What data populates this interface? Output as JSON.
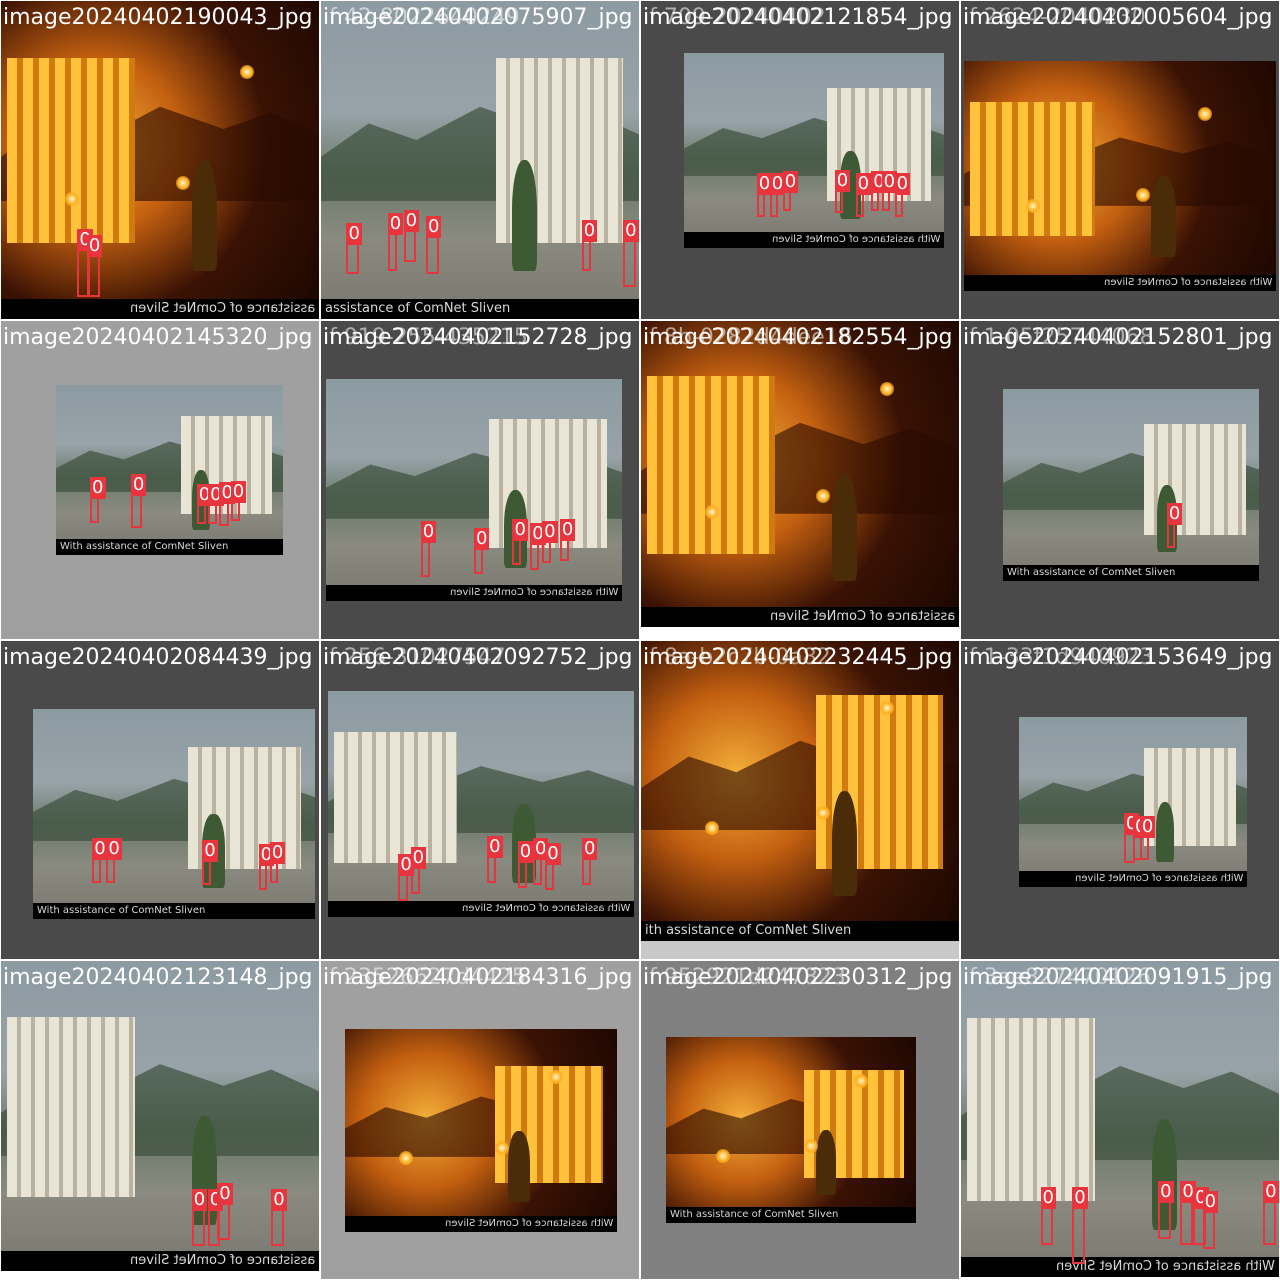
{
  "tiles": [
    {
      "title": "image20240402190043_jpg",
      "ghost": "",
      "caption": "assistance of ComNet Sliven",
      "caption_mirrored": true,
      "night": true,
      "labels": [
        "0",
        "0"
      ]
    },
    {
      "title": "image20240402075907_jpg",
      "ghost": "if 42-8022640249",
      "caption": "assistance of ComNet Sliven",
      "caption_mirrored": false,
      "night": false,
      "labels": [
        "0",
        "0",
        "0",
        "0",
        "0",
        "0"
      ]
    },
    {
      "title": "image20240402121854_jpg",
      "ghost": "if 709-20240402",
      "caption": "With assistance of ComNet Sliven",
      "caption_mirrored": true,
      "night": false,
      "labels": [
        "0",
        "0",
        "0",
        "0",
        "0",
        "0",
        "0",
        "0"
      ]
    },
    {
      "title": "image20240402005604_jpg",
      "ghost": "if 2624-2040230",
      "caption": "With assistance of ComNet Sliven",
      "caption_mirrored": true,
      "night": true,
      "labels": []
    },
    {
      "title": "image20240402145320_jpg",
      "ghost": "",
      "caption": "With assistance of ComNet Sliven",
      "caption_mirrored": false,
      "night": false,
      "labels": [
        "0",
        "0",
        "0",
        "0",
        "0",
        "0"
      ]
    },
    {
      "title": "image20240402152728_jpg",
      "ghost": "if 919-255-435215",
      "caption": "With assistance of ComNet Sliven",
      "caption_mirrored": true,
      "night": false,
      "labels": [
        "0",
        "0",
        "0",
        "0",
        "0",
        "0"
      ]
    },
    {
      "title": "image20240402182554_jpg",
      "ghost": "if 8b-0282d4dee16",
      "caption": "assistance of ComNet Sliven",
      "caption_mirrored": true,
      "night": true,
      "labels": []
    },
    {
      "title": "image20240402152801_jpg",
      "ghost": "if 1-05f25744068",
      "caption": "With assistance of ComNet Sliven",
      "caption_mirrored": false,
      "night": false,
      "labels": [
        "0"
      ]
    },
    {
      "title": "image20240402084439_jpg",
      "ghost": "",
      "caption": "With assistance of ComNet Sliven",
      "caption_mirrored": false,
      "night": false,
      "labels": [
        "0",
        "0",
        "0",
        "0",
        "0"
      ]
    },
    {
      "title": "image20240402092752_jpg",
      "ghost": "if 256-31027547",
      "caption": "With assistance of ComNet Sliven",
      "caption_mirrored": true,
      "night": false,
      "labels": [
        "0",
        "0",
        "0",
        "0",
        "0",
        "0",
        "0"
      ]
    },
    {
      "title": "image20240402232445_jpg",
      "ghost": "if 8a-b2c7b-0a82",
      "caption": "ith assistance of ComNet Sliven",
      "caption_mirrored": false,
      "night": true,
      "labels": []
    },
    {
      "title": "image20240402153649_jpg",
      "ghost": "if 1-33f1d940923",
      "caption": "With assistance of ComNet Sliven",
      "caption_mirrored": true,
      "night": false,
      "labels": [
        "0",
        "0",
        "0"
      ]
    },
    {
      "title": "image20240402123148_jpg",
      "ghost": "",
      "caption": "assistance of ComNet Sliven",
      "caption_mirrored": true,
      "night": false,
      "labels": [
        "0",
        "0",
        "0",
        "0"
      ]
    },
    {
      "title": "image20240402184316_jpg",
      "ghost": "if 23526627d4425",
      "caption": "With assistance of ComNet Sliven",
      "caption_mirrored": true,
      "night": true,
      "labels": []
    },
    {
      "title": "image20240402230312_jpg",
      "ghost": "if 952921d247823",
      "caption": "With assistance of ComNet Sliven",
      "caption_mirrored": false,
      "night": true,
      "labels": []
    },
    {
      "title": "image20240402091915_jpg",
      "ghost": "if 3ae827470126",
      "caption": "With assistance of ComNet Sliven",
      "caption_mirrored": true,
      "night": false,
      "labels": [
        "0",
        "0",
        "0",
        "0",
        "0",
        "0",
        "0"
      ]
    }
  ],
  "colors": {
    "box": "#e8343c",
    "title_text": "#ffffff",
    "caption_bg": "#000000"
  }
}
